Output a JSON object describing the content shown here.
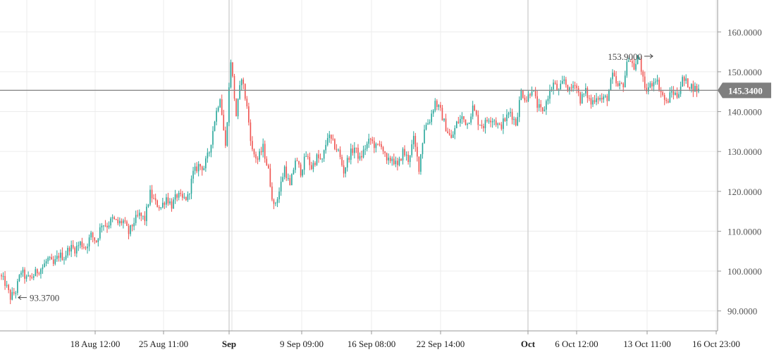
{
  "chart_data": {
    "type": "candlestick",
    "title": "",
    "xlabel": "",
    "ylabel": "",
    "ylim": [
      85,
      168
    ],
    "yticks": [
      "90.0000",
      "100.0000",
      "110.0000",
      "120.0000",
      "130.0000",
      "140.0000",
      "150.0000",
      "160.0000"
    ],
    "xticks": [
      {
        "label": "18 Aug 12:00",
        "bold": false
      },
      {
        "label": "25 Aug 11:00",
        "bold": false
      },
      {
        "label": "Sep",
        "bold": true
      },
      {
        "label": "9 Sep 09:00",
        "bold": false
      },
      {
        "label": "16 Sep 08:00",
        "bold": false
      },
      {
        "label": "22 Sep 14:00",
        "bold": false
      },
      {
        "label": "Oct",
        "bold": true
      },
      {
        "label": "6 Oct 12:00",
        "bold": false
      },
      {
        "label": "13 Oct 11:00",
        "bold": false
      },
      {
        "label": "16 Oct 23:00",
        "bold": false
      }
    ],
    "grid": true,
    "current_price": 145.34,
    "current_price_label": "145.3400",
    "max_label": "153.9000",
    "min_label": "93.3700",
    "up_color": "#26a69a",
    "down_color": "#ef5350",
    "path": [
      99.0,
      97.0,
      93.4,
      95.0,
      100.0,
      98.0,
      98.5,
      100.0,
      101.0,
      103.0,
      101.5,
      104.0,
      103.5,
      106.0,
      105.5,
      107.0,
      106.0,
      109.0,
      107.5,
      112.0,
      111.5,
      113.0,
      112.0,
      112.5,
      109.5,
      112.5,
      114.0,
      113.0,
      119.5,
      117.0,
      116.0,
      118.5,
      116.5,
      119.0,
      118.0,
      118.5,
      124.5,
      126.5,
      126.0,
      130.0,
      138.0,
      144.0,
      131.0,
      153.0,
      139.0,
      149.0,
      141.0,
      130.0,
      128.0,
      131.0,
      125.0,
      116.0,
      120.0,
      126.0,
      121.0,
      128.0,
      125.0,
      129.0,
      126.0,
      128.5,
      127.5,
      134.0,
      132.0,
      130.0,
      125.0,
      129.0,
      131.0,
      128.0,
      131.0,
      133.0,
      131.0,
      132.0,
      127.0,
      128.5,
      126.0,
      130.0,
      128.0,
      133.0,
      126.0,
      136.0,
      138.0,
      142.5,
      140.0,
      136.0,
      133.0,
      137.0,
      138.5,
      137.0,
      141.0,
      137.5,
      136.5,
      138.5,
      138.0,
      136.0,
      138.0,
      140.0,
      137.0,
      145.0,
      143.0,
      146.0,
      141.5,
      139.5,
      144.0,
      147.0,
      145.0,
      148.0,
      145.0,
      147.5,
      143.0,
      145.0,
      142.0,
      144.0,
      143.0,
      143.5,
      149.0,
      146.0,
      147.0,
      153.9,
      151.0,
      153.5,
      145.0,
      146.5,
      148.5,
      145.0,
      142.0,
      145.0,
      144.0,
      148.0,
      147.0,
      146.0,
      145.34
    ]
  }
}
